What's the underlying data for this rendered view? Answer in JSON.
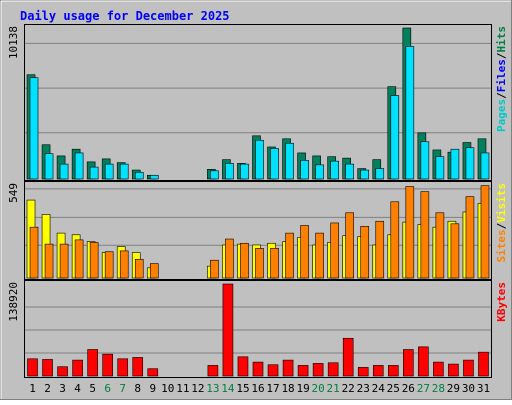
{
  "chart_data": {
    "type": "bar",
    "title": "Daily usage for December 2025",
    "days": [
      "1",
      "2",
      "3",
      "4",
      "5",
      "6",
      "7",
      "8",
      "9",
      "10",
      "11",
      "12",
      "13",
      "14",
      "15",
      "16",
      "17",
      "18",
      "19",
      "20",
      "21",
      "22",
      "23",
      "24",
      "25",
      "26",
      "27",
      "28",
      "29",
      "30",
      "31"
    ],
    "weekend_days": [
      "6",
      "7",
      "13",
      "14",
      "20",
      "21",
      "27",
      "28"
    ],
    "panels": [
      {
        "id": "hits-files-pages",
        "y_max_label": "10138",
        "y_max": 10138,
        "right_labels": [
          {
            "text": "Pages",
            "color": "#00c8c8"
          },
          {
            "text": "Files",
            "color": "#0000ff"
          },
          {
            "text": "Hits",
            "color": "#008040"
          }
        ],
        "series": [
          {
            "name": "Hits",
            "color": "#00805c",
            "values": [
              7000,
              2300,
              1550,
              2000,
              1150,
              1350,
              1100,
              600,
              250,
              0,
              0,
              0,
              650,
              1300,
              1050,
              2900,
              2150,
              2700,
              1750,
              1550,
              1500,
              1400,
              700,
              1300,
              6200,
              10138,
              3100,
              1950,
              1800,
              2450,
              2700
            ]
          },
          {
            "name": "Files",
            "color": "#00e0ff",
            "values": [
              6800,
              1700,
              1000,
              1750,
              800,
              1000,
              1000,
              450,
              250,
              0,
              0,
              0,
              550,
              1050,
              1000,
              2600,
              2050,
              2400,
              1250,
              950,
              1200,
              1000,
              600,
              700,
              5600,
              8900,
              2500,
              1500,
              2000,
              2100,
              1750
            ]
          },
          {
            "name": "Pages",
            "color": "#00c8c8",
            "values": [
              6800,
              1700,
              1000,
              1750,
              800,
              1000,
              1000,
              450,
              250,
              0,
              0,
              0,
              550,
              1050,
              1000,
              2600,
              2050,
              2400,
              1250,
              950,
              1200,
              1000,
              600,
              700,
              5600,
              8900,
              2500,
              1500,
              2000,
              2100,
              1750
            ]
          }
        ]
      },
      {
        "id": "visits-sites",
        "y_max_label": "549",
        "y_max": 549,
        "right_labels": [
          {
            "text": "Sites",
            "color": "#ff8000"
          },
          {
            "text": "Visits",
            "color": "#ffff00"
          }
        ],
        "series": [
          {
            "name": "Visits",
            "color": "#ffff00",
            "values": [
              460,
              375,
              265,
              255,
              215,
              150,
              185,
              150,
              60,
              0,
              0,
              0,
              70,
              195,
              200,
              195,
              205,
              215,
              240,
              195,
              210,
              250,
              245,
              195,
              255,
              330,
              315,
              300,
              335,
              390,
              440
            ]
          },
          {
            "name": "Sites",
            "color": "#ff8000",
            "values": [
              300,
              200,
              200,
              225,
              210,
              155,
              160,
              110,
              85,
              0,
              0,
              0,
              105,
              230,
              205,
              175,
              175,
              265,
              310,
              265,
              325,
              385,
              305,
              335,
              450,
              540,
              510,
              385,
              320,
              480,
              545
            ]
          }
        ]
      },
      {
        "id": "kbytes",
        "y_max_label": "138920",
        "y_max": 138920,
        "right_labels": [
          {
            "text": "KBytes",
            "color": "#ff0000"
          }
        ],
        "series": [
          {
            "name": "KBytes",
            "color": "#ff0000",
            "values": [
              26000,
              25000,
              14000,
              24000,
              40000,
              33000,
              26000,
              28000,
              11000,
              0,
              0,
              0,
              16000,
              138920,
              29000,
              21000,
              17000,
              24000,
              16000,
              19000,
              20000,
              57000,
              13000,
              16000,
              16000,
              40000,
              44000,
              21000,
              18000,
              24000,
              36000
            ]
          }
        ]
      }
    ]
  }
}
